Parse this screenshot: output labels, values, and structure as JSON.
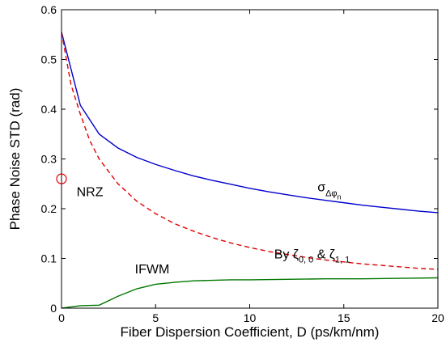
{
  "chart_data": {
    "type": "line",
    "title": "",
    "xlabel": "Fiber Dispersion Coefficient, D (ps/km/nm)",
    "ylabel": "Phase Noise STD (rad)",
    "xlim": [
      0,
      20
    ],
    "ylim": [
      0,
      0.6
    ],
    "xticks": [
      0,
      5,
      10,
      15,
      20
    ],
    "yticks": [
      0,
      0.1,
      0.2,
      0.3,
      0.4,
      0.5,
      0.6
    ],
    "xtick_labels": [
      "0",
      "5",
      "10",
      "15",
      "20"
    ],
    "ytick_labels": [
      "0",
      "0.1",
      "0.2",
      "0.3",
      "0.4",
      "0.5",
      "0.6"
    ],
    "grid": false,
    "series": [
      {
        "name": "σ_Δφn",
        "color": "#0000cc",
        "style": "solid",
        "x": [
          0,
          1,
          2,
          3,
          4,
          5,
          6,
          7,
          8,
          9,
          10,
          11,
          12,
          13,
          14,
          15,
          16,
          17,
          18,
          19,
          20
        ],
        "y": [
          0.555,
          0.408,
          0.35,
          0.322,
          0.303,
          0.289,
          0.277,
          0.266,
          0.257,
          0.249,
          0.241,
          0.234,
          0.228,
          0.222,
          0.217,
          0.212,
          0.207,
          0.203,
          0.199,
          0.195,
          0.192
        ]
      },
      {
        "name": "By ζ0,0 & ζ1,1",
        "color": "#e00000",
        "style": "dashed",
        "x": [
          0,
          0.5,
          1,
          1.5,
          2,
          3,
          4,
          5,
          6,
          7,
          8,
          9,
          10,
          11,
          12,
          13,
          14,
          15,
          16,
          17,
          18,
          19,
          20
        ],
        "y": [
          0.555,
          0.45,
          0.39,
          0.337,
          0.3,
          0.25,
          0.215,
          0.19,
          0.17,
          0.155,
          0.142,
          0.131,
          0.122,
          0.114,
          0.108,
          0.102,
          0.097,
          0.093,
          0.089,
          0.086,
          0.083,
          0.08,
          0.078
        ]
      },
      {
        "name": "IFWM",
        "color": "#007700",
        "style": "solid",
        "x": [
          0,
          1,
          2,
          3,
          4,
          5,
          6,
          7,
          8,
          9,
          10,
          12,
          14,
          16,
          18,
          20
        ],
        "y": [
          0,
          0.005,
          0.006,
          0.024,
          0.039,
          0.048,
          0.052,
          0.055,
          0.056,
          0.057,
          0.057,
          0.058,
          0.059,
          0.059,
          0.06,
          0.061
        ]
      }
    ],
    "markers": [
      {
        "name": "NRZ",
        "x": 0,
        "y": 0.26,
        "shape": "circle",
        "color": "#e00000"
      }
    ],
    "annotations": {
      "nrz": {
        "text": "NRZ",
        "x": 0.8,
        "y": 0.225
      },
      "sigma": {
        "base": "σ",
        "sub": "Δφ",
        "subsub": "n",
        "x": 13.6,
        "y": 0.235
      },
      "by_zeta": {
        "prefix": "By ζ",
        "sub1": "0, 0",
        "mid": " & ζ",
        "sub2": "1, 1",
        "x": 11.3,
        "y": 0.1
      },
      "ifwm": {
        "text": "IFWM",
        "x": 3.9,
        "y": 0.07
      }
    }
  }
}
